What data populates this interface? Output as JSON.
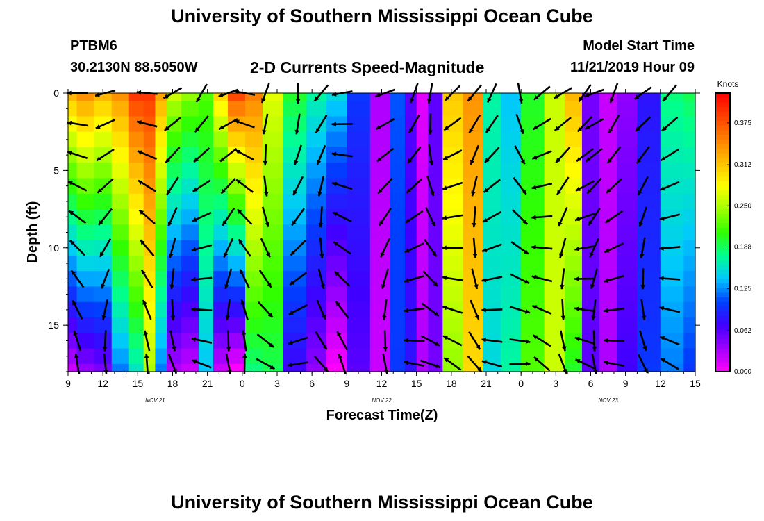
{
  "header": {
    "title": "University of Southern Mississippi Ocean Cube",
    "station": "PTBM6",
    "coords": "30.2130N 88.5050W",
    "subtitle": "2-D Currents Speed-Magnitude",
    "model_start_label": "Model Start Time",
    "model_start_value": "11/21/2019 Hour 09"
  },
  "footer": {
    "title": "University of Southern Mississippi Ocean Cube"
  },
  "colors": {
    "scale": [
      "#ff00ff",
      "#a000ff",
      "#4000ff",
      "#0040ff",
      "#00c8ff",
      "#00ff90",
      "#30ff00",
      "#a0ff00",
      "#ffff00",
      "#ffc000",
      "#ff8000",
      "#ff4000",
      "#ff0000"
    ]
  },
  "chart_data": {
    "type": "heatmap",
    "xlabel": "Forecast Time(Z)",
    "ylabel": "Depth (ft)",
    "x_ticks": [
      "9",
      "12",
      "15",
      "18",
      "21",
      "0",
      "3",
      "6",
      "9",
      "12",
      "15",
      "18",
      "21",
      "0",
      "3",
      "6",
      "9",
      "12",
      "15"
    ],
    "x_range_hours": [
      0,
      54
    ],
    "date_labels": [
      {
        "text": "NOV 21",
        "hour": 7.5
      },
      {
        "text": "NOV 22",
        "hour": 27
      },
      {
        "text": "NOV 23",
        "hour": 46.5
      }
    ],
    "y_ticks": [
      0,
      5,
      10,
      15
    ],
    "ylim": [
      0,
      18
    ],
    "y_inverted": true,
    "colorbar": {
      "title": "Knots",
      "ticks": [
        "0.375",
        "0.312",
        "0.250",
        "0.188",
        "0.125",
        "0.062",
        "0.000"
      ],
      "range": [
        0,
        0.42
      ]
    },
    "depths_ft": [
      0,
      1,
      2,
      3,
      4,
      5,
      6,
      7,
      8,
      9,
      10,
      11,
      12,
      13,
      14,
      15,
      16,
      17,
      18
    ],
    "speed_columns": [
      {
        "hour": 0,
        "surface": 0.32,
        "bottom": 0.02
      },
      {
        "hour": 1.5,
        "surface": 0.34,
        "bottom": 0.04
      },
      {
        "hour": 3,
        "surface": 0.32,
        "bottom": 0.05
      },
      {
        "hour": 4.5,
        "surface": 0.34,
        "bottom": 0.12
      },
      {
        "hour": 6,
        "surface": 0.39,
        "bottom": 0.16
      },
      {
        "hour": 7,
        "surface": 0.39,
        "bottom": 0.25
      },
      {
        "hour": 8,
        "surface": 0.33,
        "bottom": 0.12
      },
      {
        "hour": 9,
        "surface": 0.26,
        "bottom": 0.03
      },
      {
        "hour": 10.5,
        "surface": 0.24,
        "bottom": 0.02
      },
      {
        "hour": 12,
        "surface": 0.22,
        "bottom": 0.14
      },
      {
        "hour": 13,
        "surface": 0.3,
        "bottom": 0.02
      },
      {
        "hour": 14.5,
        "surface": 0.38,
        "bottom": 0.0
      },
      {
        "hour": 16,
        "surface": 0.35,
        "bottom": 0.18
      },
      {
        "hour": 17.5,
        "surface": 0.27,
        "bottom": 0.19
      },
      {
        "hour": 19.5,
        "surface": 0.2,
        "bottom": 0.07
      },
      {
        "hour": 21.5,
        "surface": 0.17,
        "bottom": 0.04
      },
      {
        "hour": 23,
        "surface": 0.15,
        "bottom": 0.0
      },
      {
        "hour": 25,
        "surface": 0.1,
        "bottom": 0.06
      },
      {
        "hour": 27,
        "surface": 0.03,
        "bottom": 0.02
      },
      {
        "hour": 28.5,
        "surface": 0.11,
        "bottom": 0.1
      },
      {
        "hour": 29.5,
        "surface": 0.06,
        "bottom": 0.08
      },
      {
        "hour": 30.5,
        "surface": 0.01,
        "bottom": 0.03
      },
      {
        "hour": 31.5,
        "surface": 0.06,
        "bottom": 0.05
      },
      {
        "hour": 33,
        "surface": 0.31,
        "bottom": 0.24
      },
      {
        "hour": 35,
        "surface": 0.34,
        "bottom": 0.3
      },
      {
        "hour": 36.5,
        "surface": 0.17,
        "bottom": 0.15
      },
      {
        "hour": 38,
        "surface": 0.14,
        "bottom": 0.17
      },
      {
        "hour": 40,
        "surface": 0.2,
        "bottom": 0.22
      },
      {
        "hour": 42,
        "surface": 0.26,
        "bottom": 0.26
      },
      {
        "hour": 43.5,
        "surface": 0.32,
        "bottom": 0.2
      },
      {
        "hour": 45,
        "surface": 0.05,
        "bottom": 0.06
      },
      {
        "hour": 46.5,
        "surface": 0.02,
        "bottom": 0.03
      },
      {
        "hour": 48,
        "surface": 0.04,
        "bottom": 0.07
      },
      {
        "hour": 50,
        "surface": 0.08,
        "bottom": 0.1
      },
      {
        "hour": 52,
        "surface": 0.18,
        "bottom": 0.12
      },
      {
        "hour": 54,
        "surface": 0.19,
        "bottom": 0.1
      }
    ],
    "vector_hours": [
      0.8,
      3.2,
      6.8,
      9.0,
      11.5,
      13.8,
      15.2,
      17.0,
      19.8,
      21.8,
      23.6,
      27.3,
      29.8,
      31.2,
      33.1,
      35.0,
      36.5,
      38.9,
      40.8,
      42.6,
      44.5,
      45.3,
      47.0,
      49.5,
      51.8
    ],
    "vector_directions_deg": [
      180,
      195,
      175,
      210,
      240,
      200,
      170,
      250,
      270,
      230,
      190,
      200,
      250,
      260,
      225,
      230,
      245,
      280,
      220,
      210,
      235,
      200,
      250,
      215,
      230
    ],
    "vector_rows_ft": [
      0,
      2,
      4,
      6,
      8,
      10,
      12,
      14,
      16,
      17.5
    ]
  }
}
